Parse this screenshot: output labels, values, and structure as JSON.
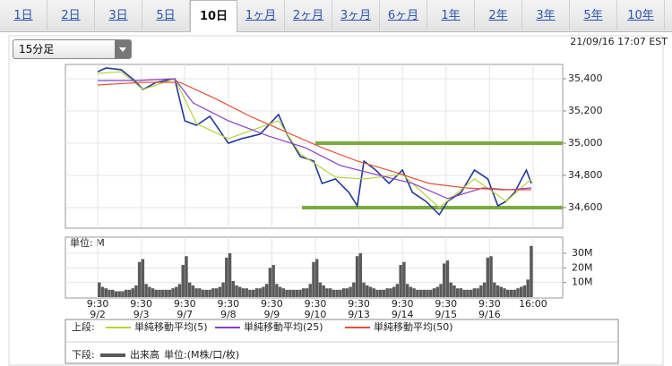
{
  "tabs": [
    "1日",
    "2日",
    "3日",
    "5日",
    "10日",
    "1ヶ月",
    "2ヶ月",
    "3ヶ月",
    "6ヶ月",
    "1年",
    "2年",
    "3年",
    "5年",
    "10年"
  ],
  "active_tab": 4,
  "interval_select": "15分足",
  "timestamp": "21/09/16 17:07 EST",
  "chart_data": [
    {
      "type": "line",
      "legend_label": "上段:",
      "color": "#233a9c",
      "x": [
        0,
        5,
        14,
        22,
        27,
        35,
        46,
        52,
        59,
        67,
        78,
        86,
        97,
        108,
        113,
        121,
        129,
        134,
        142,
        150,
        155,
        159,
        166,
        174,
        182,
        188,
        196,
        204,
        209,
        217,
        225,
        233,
        239,
        244,
        249,
        256,
        259
      ],
      "values": [
        35444,
        35467,
        35456,
        35389,
        35333,
        35378,
        35400,
        35139,
        35111,
        35167,
        35000,
        35028,
        35056,
        35178,
        35056,
        34917,
        34889,
        34750,
        34778,
        34694,
        34611,
        34889,
        34833,
        34750,
        34833,
        34694,
        34639,
        34556,
        34639,
        34694,
        34833,
        34778,
        34611,
        34639,
        34694,
        34833,
        34750
      ],
      "series": [
        {
          "name": "単純移動平均(5)",
          "color": "#b5d33a",
          "x": [
            0,
            14,
            27,
            46,
            59,
            78,
            108,
            121,
            142,
            159,
            182,
            204,
            225,
            244,
            259
          ],
          "values": [
            35433,
            35444,
            35333,
            35400,
            35122,
            35028,
            35139,
            34933,
            34789,
            34778,
            34806,
            34600,
            34778,
            34639,
            34778
          ]
        },
        {
          "name": "単純移動平均(25)",
          "color": "#8a3fc9",
          "x": [
            0,
            22,
            46,
            57,
            78,
            102,
            124,
            145,
            166,
            188,
            209,
            230,
            246,
            259
          ],
          "values": [
            35389,
            35389,
            35400,
            35250,
            35139,
            35044,
            34972,
            34861,
            34806,
            34750,
            34656,
            34722,
            34711,
            34722
          ]
        },
        {
          "name": "単純移動平均(50)",
          "color": "#e0533a",
          "x": [
            0,
            27,
            49,
            70,
            91,
            113,
            134,
            155,
            177,
            198,
            220,
            241,
            259
          ],
          "values": [
            35361,
            35378,
            35378,
            35278,
            35167,
            35067,
            34972,
            34889,
            34822,
            34750,
            34722,
            34711,
            34711
          ]
        }
      ],
      "hlines": [
        {
          "value": 35000,
          "x_start": 130,
          "color": "#7aab3e"
        },
        {
          "value": 34600,
          "x_start": 122,
          "color": "#7aab3e"
        }
      ],
      "xlim": [
        -19.3,
        277.7
      ],
      "ylim": [
        34472,
        35489
      ],
      "yticks": [
        {
          "value": 34600,
          "label": "34,600"
        },
        {
          "value": 34800,
          "label": "34,800"
        },
        {
          "value": 35000,
          "label": "35,000"
        },
        {
          "value": 35200,
          "label": "35,200"
        },
        {
          "value": 35400,
          "label": "35,400"
        }
      ],
      "xticks": [
        {
          "value": 0,
          "label": "9:30",
          "date": "9/2"
        },
        {
          "value": 26,
          "label": "9:30",
          "date": "9/3"
        },
        {
          "value": 52,
          "label": "9:30",
          "date": "9/7"
        },
        {
          "value": 78,
          "label": "9:30",
          "date": "9/8"
        },
        {
          "value": 104,
          "label": "9:30",
          "date": "9/9"
        },
        {
          "value": 130,
          "label": "9:30",
          "date": "9/10"
        },
        {
          "value": 156,
          "label": "9:30",
          "date": "9/13"
        },
        {
          "value": 182,
          "label": "9:30",
          "date": "9/14"
        },
        {
          "value": 208,
          "label": "9:30",
          "date": "9/15"
        },
        {
          "value": 234,
          "label": "9:30",
          "date": "9/16"
        },
        {
          "value": 260,
          "label": "16:00"
        }
      ],
      "grid": true
    },
    {
      "type": "bar",
      "name": "出来高",
      "unit_label": "単位: M",
      "unit_note": "単位:(M株/口/枚)",
      "legend_label": "下段:",
      "color": "#5a5a5a",
      "x": [
        0,
        2,
        4,
        6,
        8,
        10,
        12,
        14,
        16,
        18,
        20,
        22,
        24,
        26,
        28,
        30,
        32,
        34,
        36,
        38,
        40,
        42,
        44,
        46,
        48,
        50,
        52,
        54,
        56,
        58,
        60,
        62,
        64,
        66,
        68,
        70,
        72,
        74,
        76,
        78,
        80,
        82,
        84,
        86,
        88,
        90,
        92,
        94,
        96,
        98,
        100,
        102,
        104,
        106,
        108,
        110,
        112,
        114,
        116,
        118,
        120,
        122,
        124,
        126,
        128,
        130,
        132,
        134,
        136,
        138,
        140,
        142,
        144,
        146,
        148,
        150,
        152,
        154,
        156,
        158,
        160,
        162,
        164,
        166,
        168,
        170,
        172,
        174,
        176,
        178,
        180,
        182,
        184,
        186,
        188,
        190,
        192,
        194,
        196,
        198,
        200,
        202,
        204,
        206,
        208,
        210,
        212,
        214,
        216,
        218,
        220,
        222,
        224,
        226,
        228,
        230,
        232,
        234,
        236,
        238,
        240,
        242,
        244,
        246,
        248,
        250,
        252,
        254,
        256,
        258
      ],
      "values": [
        10,
        7,
        6,
        5,
        5,
        4,
        4,
        4,
        5,
        5,
        6,
        8,
        24,
        26,
        9,
        7,
        6,
        5,
        5,
        5,
        5,
        5,
        6,
        7,
        9,
        22,
        28,
        10,
        8,
        6,
        6,
        5,
        5,
        5,
        6,
        6,
        7,
        10,
        27,
        30,
        11,
        8,
        7,
        6,
        6,
        5,
        5,
        6,
        6,
        7,
        9,
        20,
        22,
        9,
        7,
        6,
        5,
        5,
        5,
        5,
        5,
        6,
        6,
        9,
        24,
        26,
        10,
        8,
        6,
        6,
        5,
        5,
        5,
        6,
        6,
        7,
        10,
        28,
        30,
        10,
        8,
        7,
        6,
        5,
        5,
        5,
        6,
        6,
        7,
        9,
        22,
        24,
        9,
        7,
        6,
        5,
        5,
        5,
        5,
        5,
        6,
        7,
        9,
        23,
        25,
        10,
        8,
        6,
        6,
        5,
        5,
        5,
        6,
        6,
        8,
        10,
        27,
        28,
        10,
        8,
        7,
        6,
        5,
        5,
        5,
        6,
        7,
        8,
        12,
        35
      ],
      "ylim": [
        0,
        41
      ],
      "yticks": [
        {
          "value": 10,
          "label": "10M"
        },
        {
          "value": 20,
          "label": "20M"
        },
        {
          "value": 30,
          "label": "30M"
        }
      ]
    }
  ]
}
